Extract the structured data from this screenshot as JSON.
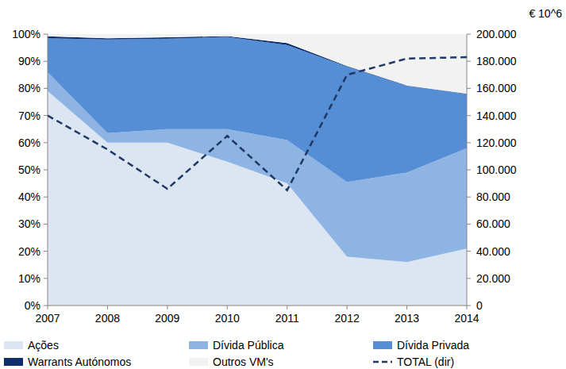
{
  "chart_data": {
    "type": "area",
    "stacked": true,
    "y2_label": "€ 10^6",
    "categories": [
      "2007",
      "2008",
      "2009",
      "2010",
      "2011",
      "2012",
      "2013",
      "2014"
    ],
    "ylim": [
      0,
      100
    ],
    "yticks": [
      {
        "value": 0,
        "label": "0%"
      },
      {
        "value": 10,
        "label": "10%"
      },
      {
        "value": 20,
        "label": "20%"
      },
      {
        "value": 30,
        "label": "30%"
      },
      {
        "value": 40,
        "label": "40%"
      },
      {
        "value": 50,
        "label": "50%"
      },
      {
        "value": 60,
        "label": "60%"
      },
      {
        "value": 70,
        "label": "70%"
      },
      {
        "value": 80,
        "label": "80%"
      },
      {
        "value": 90,
        "label": "90%"
      },
      {
        "value": 100,
        "label": "100%"
      }
    ],
    "y2lim": [
      0,
      200000
    ],
    "y2ticks": [
      0,
      {
        "value": 20000,
        "label": "20.000"
      },
      {
        "value": 40000,
        "label": "40.000"
      },
      {
        "value": 60000,
        "label": "60.000"
      },
      {
        "value": 80000,
        "label": "80.000"
      },
      {
        "value": 100000,
        "label": "100.000"
      },
      {
        "value": 120000,
        "label": "120.000"
      },
      {
        "value": 140000,
        "label": "140.000"
      },
      {
        "value": 160000,
        "label": "160.000"
      },
      {
        "value": 180000,
        "label": "180.000"
      },
      {
        "value": 200000,
        "label": "200.000"
      }
    ],
    "legend": "bottom",
    "series": [
      {
        "name": "Ações",
        "color": "#dce6f2",
        "values": [
          79,
          60,
          60,
          53,
          45,
          18,
          16,
          21
        ]
      },
      {
        "name": "Dívida Pública",
        "color": "#8eb4e3",
        "values": [
          7,
          3.5,
          5,
          12,
          16,
          27.5,
          33,
          37
        ]
      },
      {
        "name": "Dívida Privada",
        "color": "#558ed5",
        "values": [
          12.5,
          34.5,
          33.3,
          34,
          35,
          42.5,
          32,
          20
        ]
      },
      {
        "name": "Warrants Autónomos",
        "color": "#0d2d6b",
        "values": [
          0.7,
          0.5,
          0.5,
          0.3,
          0.7,
          0.2,
          0.1,
          0.1
        ]
      },
      {
        "name": "Outros VM's",
        "color": "#f2f2f2",
        "values": [
          0.8,
          1.5,
          1.2,
          0.7,
          3.3,
          11.8,
          18.9,
          21.9
        ]
      },
      {
        "name": "TOTAL (dir)",
        "color": "#1f3864",
        "type": "line",
        "axis": "y2",
        "line_style": "dashed",
        "values": [
          140000,
          115000,
          86000,
          125000,
          85000,
          170000,
          182000,
          183000
        ]
      }
    ]
  }
}
